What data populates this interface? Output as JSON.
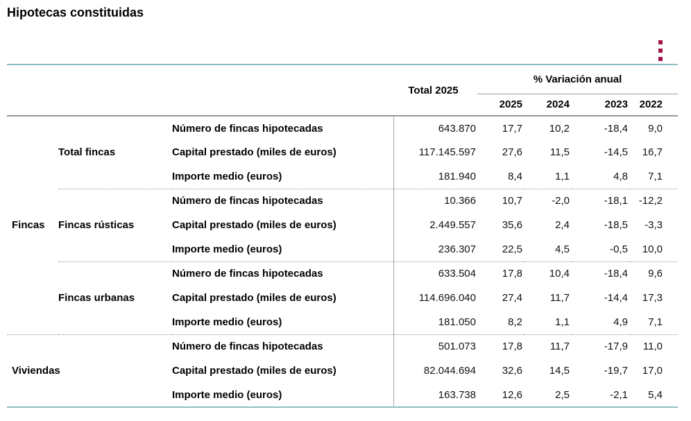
{
  "title": "Hipotecas constituidas",
  "menu": {
    "kebab_icon": "vertical-three-dots-menu"
  },
  "colors": {
    "accent_crimson": "#A31248",
    "table_border_teal": "#8FBFBF",
    "header_rule_gray": "#999999"
  },
  "table": {
    "header": {
      "total": "Total 2025",
      "variation": "% Variación anual",
      "years": [
        "2025",
        "2024",
        "2023",
        "2022"
      ]
    },
    "row_groups": {
      "fincas": "Fincas",
      "total_fincas": "Total fincas",
      "fincas_rusticas": "Fincas rústicas",
      "fincas_urbanas": "Fincas urbanas",
      "viviendas": "Viviendas"
    },
    "rows": [
      {
        "metric": "Número de fincas hipotecadas",
        "total": "643.870",
        "v": [
          "17,7",
          "10,2",
          "-18,4",
          "9,0"
        ]
      },
      {
        "metric": "Capital prestado (miles de euros)",
        "total": "117.145.597",
        "v": [
          "27,6",
          "11,5",
          "-14,5",
          "16,7"
        ]
      },
      {
        "metric": "Importe medio (euros)",
        "total": "181.940",
        "v": [
          "8,4",
          "1,1",
          "4,8",
          "7,1"
        ]
      },
      {
        "metric": "Número de fincas hipotecadas",
        "total": "10.366",
        "v": [
          "10,7",
          "-2,0",
          "-18,1",
          "-12,2"
        ]
      },
      {
        "metric": "Capital prestado (miles de euros)",
        "total": "2.449.557",
        "v": [
          "35,6",
          "2,4",
          "-18,5",
          "-3,3"
        ]
      },
      {
        "metric": "Importe medio (euros)",
        "total": "236.307",
        "v": [
          "22,5",
          "4,5",
          "-0,5",
          "10,0"
        ]
      },
      {
        "metric": "Número de fincas hipotecadas",
        "total": "633.504",
        "v": [
          "17,8",
          "10,4",
          "-18,4",
          "9,6"
        ]
      },
      {
        "metric": "Capital prestado (miles de euros)",
        "total": "114.696.040",
        "v": [
          "27,4",
          "11,7",
          "-14,4",
          "17,3"
        ]
      },
      {
        "metric": "Importe medio (euros)",
        "total": "181.050",
        "v": [
          "8,2",
          "1,1",
          "4,9",
          "7,1"
        ]
      },
      {
        "metric": "Número de fincas hipotecadas",
        "total": "501.073",
        "v": [
          "17,8",
          "11,7",
          "-17,9",
          "11,0"
        ]
      },
      {
        "metric": "Capital prestado (miles de euros)",
        "total": "82.044.694",
        "v": [
          "32,6",
          "14,5",
          "-19,7",
          "17,0"
        ]
      },
      {
        "metric": "Importe medio (euros)",
        "total": "163.738",
        "v": [
          "12,6",
          "2,5",
          "-2,1",
          "5,4"
        ]
      }
    ]
  }
}
